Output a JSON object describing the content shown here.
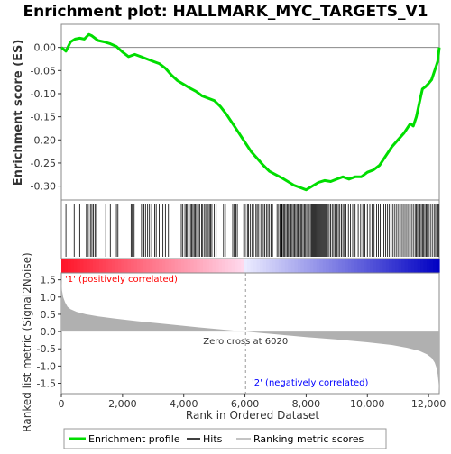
{
  "chart_data": {
    "type": "line",
    "title": "Enrichment plot: HALLMARK_MYC_TARGETS_V1",
    "enrichment_panel": {
      "ylabel": "Enrichment score (ES)",
      "ylim": [
        -0.33,
        0.05
      ],
      "yticks": [
        "0.00",
        "-0.05",
        "-0.10",
        "-0.15",
        "-0.20",
        "-0.25",
        "-0.30"
      ],
      "ytick_values": [
        0.0,
        -0.05,
        -0.1,
        -0.15,
        -0.2,
        -0.25,
        -0.3
      ],
      "line_color": "#00dd00",
      "es_curve": {
        "x": [
          0,
          150,
          300,
          450,
          600,
          750,
          900,
          1000,
          1200,
          1400,
          1600,
          1800,
          2000,
          2200,
          2400,
          2600,
          2800,
          3000,
          3200,
          3400,
          3600,
          3800,
          4000,
          4200,
          4400,
          4600,
          4800,
          5000,
          5200,
          5400,
          5600,
          5800,
          6000,
          6200,
          6400,
          6600,
          6800,
          7000,
          7200,
          7400,
          7600,
          7800,
          8000,
          8200,
          8400,
          8600,
          8800,
          9000,
          9200,
          9400,
          9600,
          9800,
          10000,
          10200,
          10400,
          10600,
          10800,
          11000,
          11200,
          11400,
          11500,
          11600,
          11700,
          11800,
          11900,
          12000,
          12100,
          12200,
          12300,
          12350
        ],
        "y": [
          0.0,
          -0.008,
          0.012,
          0.018,
          0.02,
          0.018,
          0.028,
          0.025,
          0.015,
          0.012,
          0.008,
          0.002,
          -0.01,
          -0.02,
          -0.015,
          -0.02,
          -0.025,
          -0.03,
          -0.035,
          -0.045,
          -0.06,
          -0.072,
          -0.08,
          -0.088,
          -0.095,
          -0.105,
          -0.11,
          -0.115,
          -0.128,
          -0.145,
          -0.165,
          -0.185,
          -0.205,
          -0.225,
          -0.24,
          -0.255,
          -0.268,
          -0.275,
          -0.282,
          -0.29,
          -0.298,
          -0.303,
          -0.308,
          -0.3,
          -0.292,
          -0.288,
          -0.29,
          -0.285,
          -0.28,
          -0.285,
          -0.28,
          -0.28,
          -0.27,
          -0.265,
          -0.255,
          -0.235,
          -0.215,
          -0.2,
          -0.185,
          -0.165,
          -0.17,
          -0.15,
          -0.12,
          -0.09,
          -0.085,
          -0.078,
          -0.07,
          -0.05,
          -0.03,
          0.0
        ]
      }
    },
    "ranked_metric_panel": {
      "ylabel": "Ranked list metric (Signal2Noise)",
      "ylim": [
        -1.8,
        1.7
      ],
      "yticks": [
        "1.5",
        "1.0",
        "0.5",
        "0.0",
        "-0.5",
        "-1.0",
        "-1.5"
      ],
      "ytick_values": [
        1.5,
        1.0,
        0.5,
        0.0,
        -0.5,
        -1.0,
        -1.5
      ],
      "fill_color": "#b0b0b0",
      "metric_curve": {
        "x": [
          0,
          20,
          60,
          120,
          200,
          300,
          500,
          800,
          1200,
          1800,
          2500,
          3500,
          4500,
          5500,
          6020,
          7000,
          8000,
          9000,
          10000,
          10800,
          11300,
          11700,
          11950,
          12100,
          12200,
          12260,
          12300,
          12330,
          12350
        ],
        "y": [
          1.6,
          1.2,
          1.0,
          0.85,
          0.72,
          0.65,
          0.57,
          0.5,
          0.44,
          0.37,
          0.3,
          0.21,
          0.12,
          0.04,
          0.0,
          -0.08,
          -0.16,
          -0.23,
          -0.31,
          -0.39,
          -0.47,
          -0.56,
          -0.66,
          -0.76,
          -0.9,
          -1.05,
          -1.25,
          -1.5,
          -1.75
        ]
      },
      "zero_cross_label": "Zero cross at 6020",
      "zero_cross_x": 6020,
      "positive_label": "'1' (positively correlated)",
      "negative_label": "'2' (negatively correlated)",
      "positive_color": "#ff0000",
      "negative_color": "#0000ff"
    },
    "hits": [
      150,
      420,
      600,
      820,
      880,
      950,
      1000,
      1050,
      1100,
      1150,
      1450,
      1600,
      1800,
      1850,
      2280,
      2320,
      2380,
      2620,
      2700,
      2750,
      2820,
      2880,
      2950,
      3050,
      3100,
      3200,
      3320,
      3400,
      3500,
      3920,
      3970,
      4040,
      4080,
      4120,
      4170,
      4220,
      4260,
      4300,
      4340,
      4380,
      4420,
      4480,
      4520,
      4580,
      4620,
      4680,
      4720,
      4760,
      4800,
      4840,
      4880,
      4920,
      5000,
      5060,
      5300,
      5360,
      5600,
      5650,
      5700,
      5750,
      5960,
      6010,
      6080,
      6120,
      6180,
      6240,
      6280,
      6360,
      6400,
      6450,
      6520,
      6560,
      6600,
      6650,
      6700,
      6750,
      6800,
      6850,
      6900,
      7050,
      7100,
      7150,
      7200,
      7220,
      7260,
      7300,
      7340,
      7380,
      7420,
      7460,
      7500,
      7540,
      7580,
      7620,
      7660,
      7700,
      7740,
      7780,
      7820,
      7860,
      7900,
      7940,
      7980,
      8020,
      8060,
      8100,
      8140,
      8180,
      8210,
      8240,
      8270,
      8300,
      8330,
      8360,
      8390,
      8420,
      8450,
      8480,
      8510,
      8540,
      8570,
      8600,
      8630,
      8660,
      8700,
      8750,
      8800,
      8850,
      8900,
      8950,
      9000,
      9050,
      9100,
      9150,
      9200,
      9250,
      9300,
      9380,
      9450,
      9520,
      9600,
      9700,
      9780,
      9850,
      9920,
      10000,
      10080,
      10150,
      10220,
      10300,
      10360,
      10420,
      10480,
      10540,
      10600,
      10660,
      10720,
      10780,
      10840,
      10900,
      10960,
      11020,
      11080,
      11140,
      11200,
      11260,
      11320,
      11380,
      11440,
      11500,
      11560,
      11600,
      11640,
      11680,
      11720,
      11760,
      11800,
      11840,
      11880,
      11920,
      11960,
      12000,
      12060,
      12120,
      12180,
      12230,
      12270,
      12310,
      12340
    ],
    "xlabel": "Rank in Ordered Dataset",
    "xlim": [
      0,
      12350
    ],
    "xticks": [
      "0",
      "2,000",
      "4,000",
      "6,000",
      "8,000",
      "10,000",
      "12,000"
    ],
    "xtick_values": [
      0,
      2000,
      4000,
      6000,
      8000,
      10000,
      12000
    ],
    "legend": {
      "placement": "bottom",
      "items": [
        {
          "label": "Enrichment profile",
          "color": "#00dd00"
        },
        {
          "label": "Hits",
          "color": "#000000"
        },
        {
          "label": "Ranking metric scores",
          "color": "#b0b0b0"
        }
      ]
    }
  }
}
